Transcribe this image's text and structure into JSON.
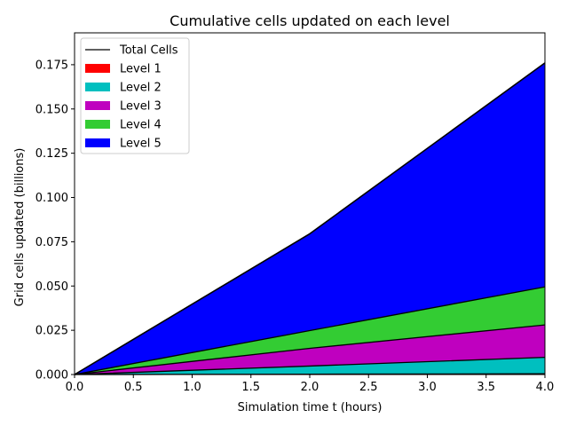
{
  "chart_data": {
    "type": "area",
    "title": "Cumulative cells updated on each level",
    "xlabel": "Simulation time t (hours)",
    "ylabel": "Grid cells updated (billions)",
    "x": [
      0.0,
      2.0,
      4.0
    ],
    "xlim": [
      0.0,
      4.0
    ],
    "ylim": [
      0.0,
      0.193
    ],
    "xticks": [
      "0.0",
      "0.5",
      "1.0",
      "1.5",
      "2.0",
      "2.5",
      "3.0",
      "3.5",
      "4.0"
    ],
    "yticks": [
      "0.000",
      "0.025",
      "0.050",
      "0.075",
      "0.100",
      "0.125",
      "0.150",
      "0.175"
    ],
    "stacked": true,
    "series": [
      {
        "name": "Level 1",
        "color": "#ff0000",
        "values": [
          0.0,
          0.0002,
          0.0004
        ]
      },
      {
        "name": "Level 2",
        "color": "#00bfbf",
        "values": [
          0.0,
          0.0046,
          0.0093
        ]
      },
      {
        "name": "Level 3",
        "color": "#bf00bf",
        "values": [
          0.0,
          0.01,
          0.0183
        ]
      },
      {
        "name": "Level 4",
        "color": "#33cc33",
        "values": [
          0.0,
          0.01,
          0.0215
        ]
      },
      {
        "name": "Level 5",
        "color": "#0000ff",
        "values": [
          0.0,
          0.0547,
          0.1265
        ]
      }
    ],
    "total_line": {
      "name": "Total Cells",
      "color": "#000000"
    },
    "legend_position": "top-left",
    "grid": false
  }
}
